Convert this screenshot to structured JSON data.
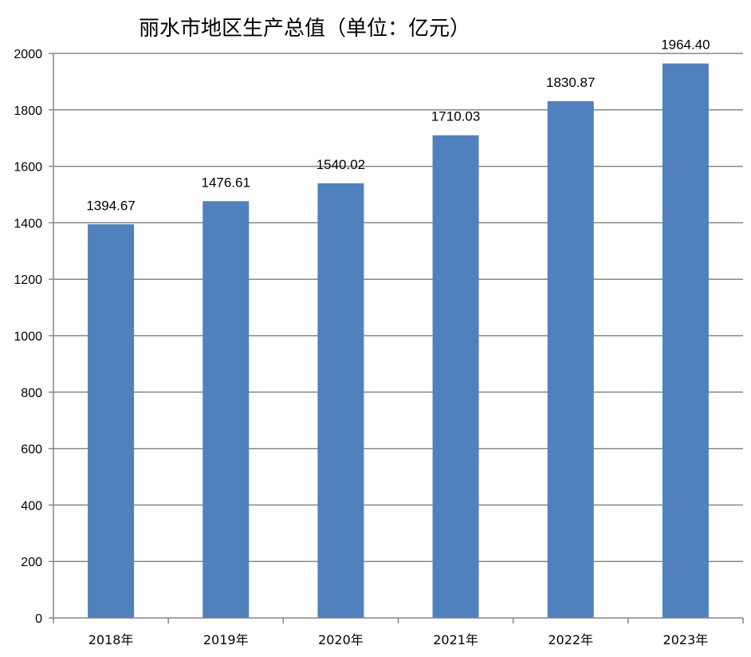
{
  "chart_data": {
    "type": "bar",
    "title": "丽水市地区生产总值（单位：亿元）",
    "categories": [
      "2018年",
      "2019年",
      "2020年",
      "2021年",
      "2022年",
      "2023年"
    ],
    "values": [
      1394.67,
      1476.61,
      1540.02,
      1710.03,
      1830.87,
      1964.4
    ],
    "value_labels": [
      "1394.67",
      "1476.61",
      "1540.02",
      "1710.03",
      "1830.87",
      "1964.40"
    ],
    "ylim": [
      0,
      2000
    ],
    "yticks": [
      0,
      200,
      400,
      600,
      800,
      1000,
      1200,
      1400,
      1600,
      1800,
      2000
    ],
    "grid": true,
    "legend": "none",
    "bar_color": "#4F81BD",
    "grid_color": "#868686"
  }
}
